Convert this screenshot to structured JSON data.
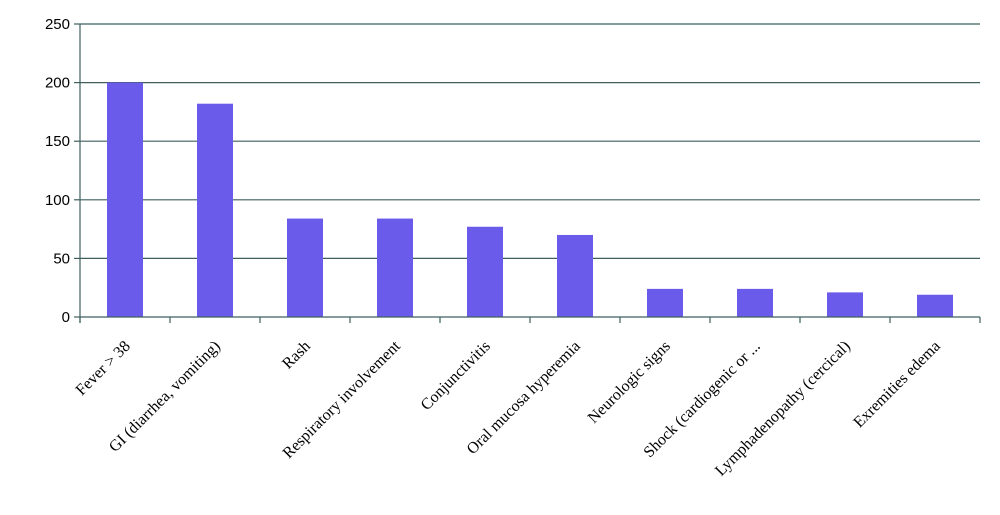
{
  "chart_data": {
    "type": "bar",
    "categories": [
      "Fever > 38",
      "GI (diarrhea, vomiting)",
      "Rash",
      "Respiratory involvement",
      "Conjunctivitis",
      "Oral mucosa hyperemia",
      "Neurologic signs",
      "Shock (cardiogenic or ...",
      "Lymphadenopathy (cercical)",
      "Exremities edema"
    ],
    "values": [
      200,
      182,
      84,
      84,
      77,
      70,
      24,
      24,
      21,
      19
    ],
    "yticks": [
      "0",
      "50",
      "100",
      "150",
      "200",
      "250"
    ],
    "ylim": [
      0,
      250
    ],
    "grid": true,
    "bar_color": "#6b5bea",
    "grid_color": "#3f5f5f"
  }
}
